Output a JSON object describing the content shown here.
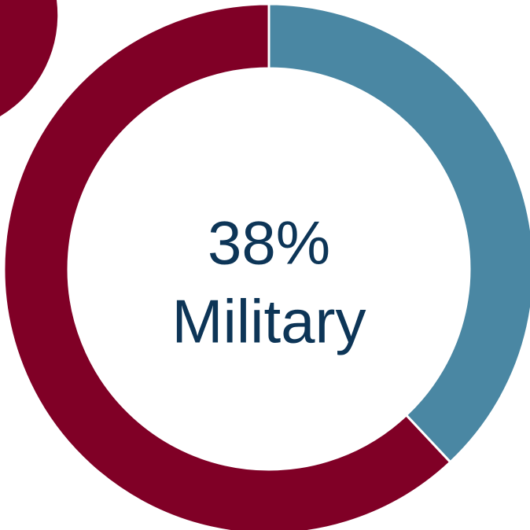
{
  "chart_data": {
    "type": "donut",
    "categories": [
      "Military",
      null
    ],
    "values": [
      38,
      62
    ],
    "value_labels": [
      "38%",
      null
    ],
    "colors": [
      "#4a87a3",
      "#800026"
    ]
  }
}
